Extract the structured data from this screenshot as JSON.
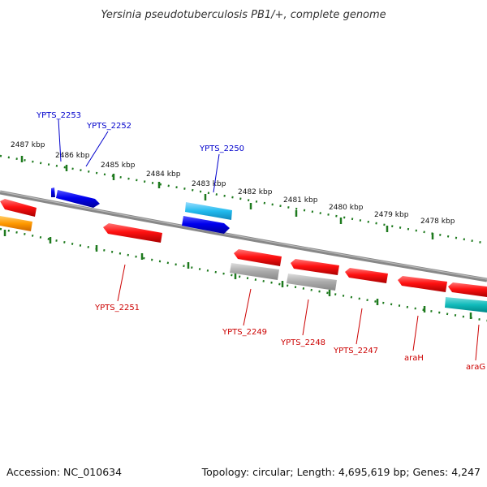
{
  "title": "Yersinia pseudotuberculosis PB1/+, complete genome",
  "footer": {
    "accession": "Accession: NC_010634",
    "summary": "Topology: circular; Length: 4,695,619 bp; Genes: 4,247"
  },
  "ticks": [
    "2487 kbp",
    "2486 kbp",
    "2485 kbp",
    "2484 kbp",
    "2483 kbp",
    "2482 kbp",
    "2481 kbp",
    "2480 kbp",
    "2479 kbp",
    "2478 kbp"
  ],
  "genes_top": [
    "YPTS_2253",
    "YPTS_2252",
    "YPTS_2250"
  ],
  "genes_bottom": [
    "YPTS_2251",
    "YPTS_2249",
    "YPTS_2248",
    "YPTS_2247",
    "araH",
    "araG"
  ],
  "colors": {
    "backbone": "#777777",
    "tick": "#1e7a1e",
    "forward_gene": "#0000dd",
    "reverse_gene": "#ee0000",
    "rna_cyan": "#22bbee",
    "pseudo_gray": "#aaaaaa",
    "orange": "#ff9900",
    "teal": "#11bbbb"
  }
}
